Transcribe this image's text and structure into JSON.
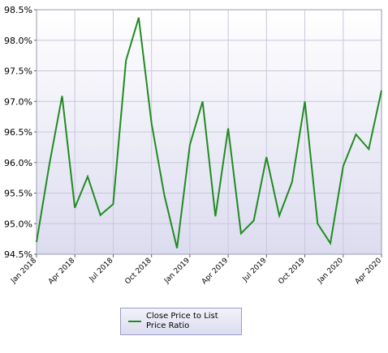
{
  "chart_data": {
    "type": "line",
    "title": "",
    "xlabel": "",
    "ylabel": "",
    "ylim": [
      94.5,
      98.5
    ],
    "y_ticks": [
      "94.5%",
      "95.0%",
      "95.5%",
      "96.0%",
      "96.5%",
      "97.0%",
      "97.5%",
      "98.0%",
      "98.5%"
    ],
    "x_ticks": [
      "Jan 2018",
      "Apr 2018",
      "Jul 2018",
      "Oct 2018",
      "Jan 2019",
      "Apr 2019",
      "Jul 2019",
      "Oct 2019",
      "Jan 2020",
      "Apr 2020"
    ],
    "grid": true,
    "legend_position": "bottom",
    "series": [
      {
        "name": "Close Price to List Price Ratio",
        "color": "#228b22",
        "x": [
          "Jan 2018",
          "Feb 2018",
          "Mar 2018",
          "Apr 2018",
          "May 2018",
          "Jun 2018",
          "Jul 2018",
          "Aug 2018",
          "Sep 2018",
          "Oct 2018",
          "Nov 2018",
          "Dec 2018",
          "Jan 2019",
          "Feb 2019",
          "Mar 2019",
          "Apr 2019",
          "May 2019",
          "Jun 2019",
          "Jul 2019",
          "Aug 2019",
          "Sep 2019",
          "Oct 2019",
          "Nov 2019",
          "Dec 2019",
          "Jan 2020",
          "Feb 2020",
          "Mar 2020",
          "Apr 2020"
        ],
        "values": [
          94.7,
          95.96,
          97.09,
          95.26,
          95.77,
          95.14,
          95.32,
          97.67,
          98.37,
          96.64,
          95.47,
          94.6,
          96.29,
          97.0,
          95.12,
          96.56,
          94.84,
          95.05,
          96.09,
          95.13,
          95.68,
          97.0,
          95.0,
          94.68,
          95.94,
          96.46,
          96.22,
          97.18
        ]
      }
    ]
  },
  "colors": {
    "plot_bg_top": "#ffffff",
    "plot_bg_bottom": "#dcdcf0",
    "grid": "#c8c8dc",
    "line": "#228b22"
  }
}
